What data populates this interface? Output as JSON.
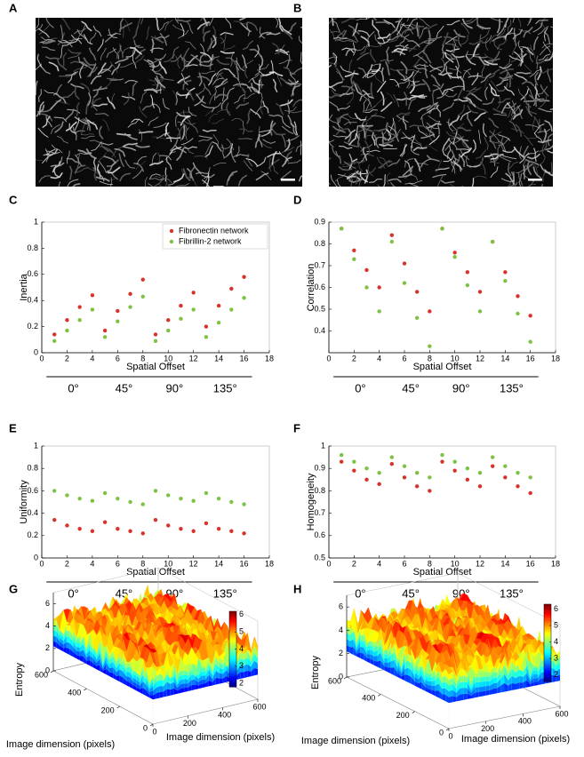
{
  "panel_labels": [
    "A",
    "B",
    "C",
    "D",
    "E",
    "F",
    "G",
    "H"
  ],
  "chart_data": [
    {
      "type": "scatter",
      "ylabel": "Inertia",
      "xlabel": "Spatial Offset",
      "x": [
        1,
        2,
        3,
        4,
        5,
        6,
        7,
        8,
        9,
        10,
        11,
        12,
        13,
        14,
        15,
        16
      ],
      "xlim": [
        0,
        18
      ],
      "xticks": [
        0,
        2,
        4,
        6,
        8,
        10,
        12,
        14,
        16,
        18
      ],
      "ylim": [
        0,
        1
      ],
      "yticks": [
        0,
        0.2,
        0.4,
        0.6,
        0.8,
        1
      ],
      "groups": [
        "0°",
        "45°",
        "90°",
        "135°"
      ],
      "legend": "upper right",
      "series": [
        {
          "name": "Fibronectin network",
          "color": "#d7332a",
          "values": [
            0.14,
            0.25,
            0.35,
            0.44,
            0.17,
            0.32,
            0.45,
            0.56,
            0.14,
            0.25,
            0.36,
            0.46,
            0.2,
            0.36,
            0.49,
            0.58
          ]
        },
        {
          "name": "Fibrillin-2 network",
          "color": "#7dc242",
          "values": [
            0.09,
            0.17,
            0.25,
            0.33,
            0.12,
            0.24,
            0.35,
            0.43,
            0.09,
            0.17,
            0.26,
            0.33,
            0.12,
            0.23,
            0.33,
            0.42
          ]
        }
      ]
    },
    {
      "type": "scatter",
      "ylabel": "Correlation",
      "xlabel": "Spatial Offset",
      "x": [
        1,
        2,
        3,
        4,
        5,
        6,
        7,
        8,
        9,
        10,
        11,
        12,
        13,
        14,
        15,
        16
      ],
      "xlim": [
        0,
        18
      ],
      "xticks": [
        0,
        2,
        4,
        6,
        8,
        10,
        12,
        14,
        16,
        18
      ],
      "ylim": [
        0.3,
        0.9
      ],
      "yticks": [
        0.4,
        0.5,
        0.6,
        0.7,
        0.8,
        0.9
      ],
      "groups": [
        "0°",
        "45°",
        "90°",
        "135°"
      ],
      "series": [
        {
          "color": "#d7332a",
          "values": [
            0.87,
            0.77,
            0.68,
            0.6,
            0.84,
            0.71,
            0.58,
            0.49,
            0.87,
            0.76,
            0.67,
            0.58,
            0.81,
            0.67,
            0.56,
            0.47
          ]
        },
        {
          "color": "#7dc242",
          "values": [
            0.87,
            0.73,
            0.6,
            0.49,
            0.81,
            0.62,
            0.46,
            0.33,
            0.87,
            0.74,
            0.61,
            0.49,
            0.81,
            0.63,
            0.48,
            0.35
          ]
        }
      ]
    },
    {
      "type": "scatter",
      "ylabel": "Uniformity",
      "xlabel": "Spatial Offset",
      "x": [
        1,
        2,
        3,
        4,
        5,
        6,
        7,
        8,
        9,
        10,
        11,
        12,
        13,
        14,
        15,
        16
      ],
      "xlim": [
        0,
        18
      ],
      "xticks": [
        0,
        2,
        4,
        6,
        8,
        10,
        12,
        14,
        16,
        18
      ],
      "ylim": [
        0,
        1
      ],
      "yticks": [
        0,
        0.2,
        0.4,
        0.6,
        0.8,
        1
      ],
      "groups": [
        "0°",
        "45°",
        "90°",
        "135°"
      ],
      "series": [
        {
          "color": "#d7332a",
          "values": [
            0.34,
            0.29,
            0.26,
            0.24,
            0.32,
            0.26,
            0.24,
            0.22,
            0.34,
            0.29,
            0.26,
            0.24,
            0.31,
            0.26,
            0.24,
            0.22
          ]
        },
        {
          "color": "#7dc242",
          "values": [
            0.6,
            0.56,
            0.53,
            0.51,
            0.58,
            0.53,
            0.5,
            0.48,
            0.6,
            0.56,
            0.53,
            0.51,
            0.58,
            0.53,
            0.5,
            0.48
          ]
        }
      ]
    },
    {
      "type": "scatter",
      "ylabel": "Homogeneity",
      "xlabel": "Spatial Offset",
      "x": [
        1,
        2,
        3,
        4,
        5,
        6,
        7,
        8,
        9,
        10,
        11,
        12,
        13,
        14,
        15,
        16
      ],
      "xlim": [
        0,
        18
      ],
      "xticks": [
        0,
        2,
        4,
        6,
        8,
        10,
        12,
        14,
        16,
        18
      ],
      "ylim": [
        0.5,
        1
      ],
      "yticks": [
        0.5,
        0.6,
        0.7,
        0.8,
        0.9,
        1
      ],
      "groups": [
        "0°",
        "45°",
        "90°",
        "135°"
      ],
      "series": [
        {
          "color": "#d7332a",
          "values": [
            0.93,
            0.89,
            0.85,
            0.83,
            0.92,
            0.86,
            0.82,
            0.8,
            0.93,
            0.89,
            0.85,
            0.82,
            0.91,
            0.86,
            0.82,
            0.79
          ]
        },
        {
          "color": "#7dc242",
          "values": [
            0.96,
            0.93,
            0.9,
            0.88,
            0.95,
            0.91,
            0.88,
            0.86,
            0.96,
            0.93,
            0.9,
            0.88,
            0.95,
            0.91,
            0.88,
            0.86
          ]
        }
      ]
    },
    {
      "type": "surface",
      "zlabel": "Entropy",
      "xlabel": "Image dimension (pixels)",
      "ylabel": "Image dimension (pixels)",
      "xlim": [
        0,
        600
      ],
      "xticks": [
        0,
        200,
        400,
        600
      ],
      "ylim": [
        0,
        600
      ],
      "yticks": [
        0,
        200,
        400,
        600
      ],
      "zlim": [
        0,
        7
      ],
      "zticks": [
        0,
        2,
        4,
        6
      ],
      "clim": [
        1.8,
        6.2
      ],
      "cticks": [
        2,
        3,
        4,
        5,
        6
      ],
      "colormap": "jet"
    },
    {
      "type": "surface",
      "zlabel": "Entropy",
      "xlabel": "Image dimension (pixels)",
      "ylabel": "Image dimension (pixels)",
      "xlim": [
        0,
        600
      ],
      "xticks": [
        0,
        200,
        400,
        600
      ],
      "ylim": [
        0,
        600
      ],
      "yticks": [
        0,
        200,
        400,
        600
      ],
      "zlim": [
        0,
        7
      ],
      "zticks": [
        0,
        2,
        4,
        6
      ],
      "clim": [
        1.6,
        6.3
      ],
      "cticks": [
        2,
        3,
        4,
        5,
        6
      ],
      "colormap": "jet"
    }
  ]
}
